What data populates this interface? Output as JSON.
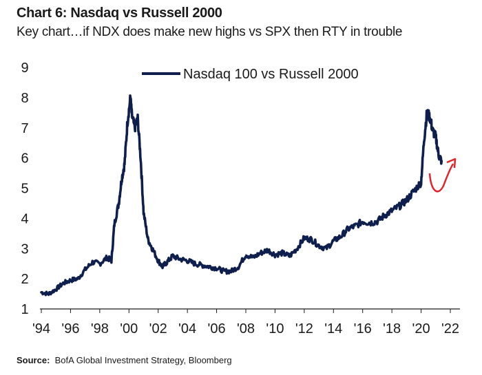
{
  "header": {
    "title": "Chart 6: Nasdaq vs Russell 2000",
    "subtitle": "Key chart…if NDX does make new highs vs SPX then RTY in trouble"
  },
  "source": {
    "label": "Source:",
    "text": "BofA Global Investment Strategy, Bloomberg"
  },
  "colors": {
    "line": "#0f1f4d",
    "annotation": "#e0262b",
    "text": "#1a1a1a"
  },
  "chart_data": {
    "type": "line",
    "title": "Chart 6: Nasdaq vs Russell 2000",
    "xlabel": "",
    "ylabel": "",
    "xlim": [
      1994,
      2022
    ],
    "ylim": [
      1,
      9
    ],
    "grid": false,
    "legend_position": "top-center",
    "x_ticks": [
      1994,
      1996,
      1998,
      2000,
      2002,
      2004,
      2006,
      2008,
      2010,
      2012,
      2014,
      2016,
      2018,
      2020,
      2022
    ],
    "x_tick_labels": [
      "'94",
      "'96",
      "'98",
      "'00",
      "'02",
      "'04",
      "'06",
      "'08",
      "'10",
      "'12",
      "'14",
      "'16",
      "'18",
      "'20",
      "'22"
    ],
    "y_ticks": [
      1,
      2,
      3,
      4,
      5,
      6,
      7,
      8,
      9
    ],
    "y_tick_labels": [
      "1",
      "2",
      "3",
      "4",
      "5",
      "6",
      "7",
      "8",
      "9"
    ],
    "series": [
      {
        "name": "Nasdaq 100 vs Russell 2000",
        "x": [
          1994.0,
          1994.5,
          1995.0,
          1995.5,
          1996.0,
          1996.5,
          1997.0,
          1997.5,
          1998.0,
          1998.5,
          1998.8,
          1999.0,
          1999.3,
          1999.5,
          1999.7,
          1999.9,
          2000.1,
          2000.2,
          2000.4,
          2000.6,
          2000.8,
          2001.0,
          2001.3,
          2001.6,
          2002.0,
          2002.3,
          2002.6,
          2003.0,
          2003.5,
          2004.0,
          2004.5,
          2005.0,
          2005.5,
          2006.0,
          2006.5,
          2007.0,
          2007.5,
          2008.0,
          2008.5,
          2009.0,
          2009.5,
          2010.0,
          2010.5,
          2011.0,
          2011.5,
          2012.0,
          2012.5,
          2013.0,
          2013.5,
          2014.0,
          2014.5,
          2015.0,
          2015.5,
          2016.0,
          2016.5,
          2017.0,
          2017.5,
          2018.0,
          2018.5,
          2019.0,
          2019.5,
          2020.0,
          2020.2,
          2020.4,
          2020.6,
          2020.8,
          2021.0,
          2021.2,
          2021.4
        ],
        "values": [
          1.55,
          1.5,
          1.65,
          1.85,
          1.95,
          2.0,
          2.3,
          2.55,
          2.5,
          2.7,
          2.6,
          3.8,
          4.5,
          5.3,
          5.8,
          7.2,
          8.0,
          7.4,
          7.0,
          7.3,
          6.0,
          4.2,
          3.3,
          3.0,
          2.6,
          2.4,
          2.55,
          2.75,
          2.65,
          2.6,
          2.5,
          2.45,
          2.4,
          2.35,
          2.25,
          2.25,
          2.4,
          2.8,
          2.7,
          2.85,
          2.95,
          2.8,
          2.85,
          2.75,
          3.0,
          3.35,
          3.3,
          3.1,
          3.0,
          3.25,
          3.4,
          3.65,
          3.75,
          3.9,
          3.85,
          3.9,
          4.1,
          4.25,
          4.4,
          4.6,
          4.9,
          5.2,
          6.6,
          7.5,
          7.35,
          6.9,
          6.7,
          6.1,
          5.9
        ]
      }
    ],
    "annotation": {
      "type": "arrow",
      "description": "curved up-arrow after last point"
    }
  }
}
